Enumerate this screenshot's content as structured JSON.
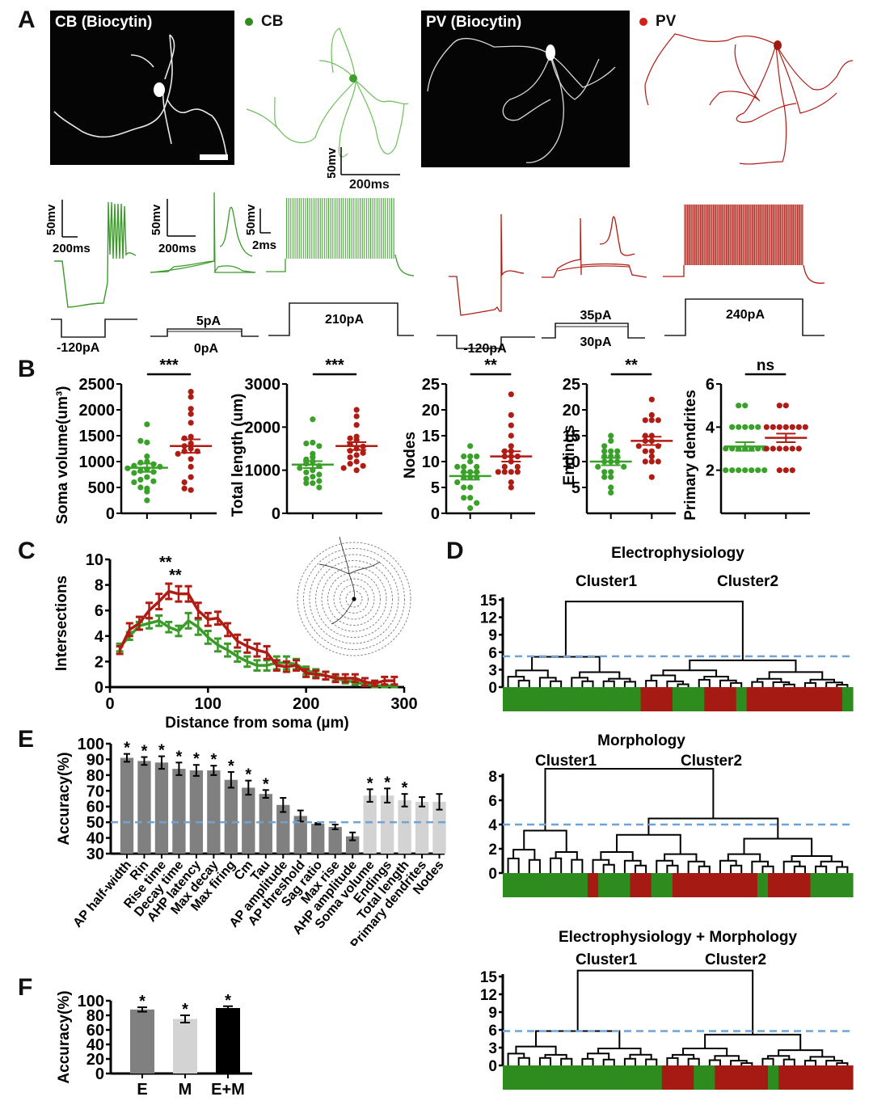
{
  "colors": {
    "cb": "#2e8b1e",
    "cb_light": "#5cc04a",
    "pv": "#b01c14",
    "pv_dark": "#a01810",
    "threshold": "#6fa3d8",
    "bar_e": "#808080",
    "bar_m": "#d3d3d3",
    "bar_em": "#000000",
    "axis": "#000000"
  },
  "panel_a": {
    "letter": "A",
    "cb_image_label": "CB (Biocytin)",
    "cb_legend": "CB",
    "pv_image_label": "PV (Biocytin)",
    "pv_legend": "PV",
    "morph_scale": {
      "v": "50mv",
      "t": "200ms"
    },
    "traces": [
      {
        "group": "CB",
        "scale_v": "50mv",
        "scale_t": "200ms",
        "currents": [
          "-120pA"
        ]
      },
      {
        "group": "CB",
        "scale_v": "50mv",
        "scale_t": "200ms",
        "currents": [
          "5pA",
          "0pA"
        ]
      },
      {
        "group": "CB",
        "scale_v": "50mv",
        "scale_t": "2ms",
        "currents": [
          "210pA"
        ]
      },
      {
        "group": "PV",
        "currents": [
          "-120pA"
        ]
      },
      {
        "group": "PV",
        "currents": [
          "35pA",
          "30pA"
        ]
      },
      {
        "group": "PV",
        "currents": [
          "240pA"
        ]
      }
    ]
  },
  "chart_data": [
    {
      "id": "B1",
      "type": "scatter",
      "panel": "B",
      "ylabel": "Soma volume(um³)",
      "ylim": [
        0,
        2500
      ],
      "yticks": [
        0,
        500,
        1000,
        1500,
        2000,
        2500
      ],
      "significance": "***",
      "series": [
        {
          "name": "CB",
          "mean": 880,
          "sem": 80,
          "values": [
            1720,
            1370,
            1400,
            1100,
            1000,
            980,
            950,
            920,
            900,
            870,
            850,
            820,
            800,
            780,
            700,
            650,
            620,
            600,
            480,
            500,
            420,
            250
          ]
        },
        {
          "name": "PV",
          "mean": 1300,
          "sem": 130,
          "values": [
            2350,
            2250,
            2020,
            1920,
            1750,
            1480,
            1450,
            1350,
            1300,
            1250,
            1200,
            1200,
            1150,
            1050,
            900,
            700,
            600,
            450,
            480
          ]
        }
      ]
    },
    {
      "id": "B2",
      "type": "scatter",
      "panel": "B",
      "ylabel": "Total length (um)",
      "ylim": [
        0,
        3000
      ],
      "yticks": [
        0,
        1000,
        2000,
        3000
      ],
      "significance": "***",
      "series": [
        {
          "name": "CB",
          "mean": 1130,
          "sem": 80,
          "values": [
            2180,
            1640,
            1620,
            1560,
            1380,
            1300,
            1250,
            1200,
            1150,
            1100,
            1050,
            1000,
            950,
            900,
            850,
            800,
            750,
            700,
            700,
            600
          ]
        },
        {
          "name": "PV",
          "mean": 1560,
          "sem": 90,
          "values": [
            2400,
            2250,
            2050,
            1780,
            1740,
            1700,
            1600,
            1550,
            1500,
            1450,
            1400,
            1350,
            1300,
            1200,
            1150,
            1100,
            1050,
            1000
          ]
        }
      ]
    },
    {
      "id": "B3",
      "type": "scatter",
      "panel": "B",
      "ylabel": "Nodes",
      "ylim": [
        0,
        25
      ],
      "yticks": [
        0,
        5,
        10,
        15,
        20,
        25
      ],
      "significance": "**",
      "series": [
        {
          "name": "CB",
          "mean": 7.2,
          "sem": 0.7,
          "values": [
            13,
            11,
            11,
            11,
            10,
            9,
            9,
            9,
            8,
            8,
            8,
            7,
            7,
            7,
            6,
            5,
            5,
            3,
            3,
            2,
            1
          ]
        },
        {
          "name": "PV",
          "mean": 11,
          "sem": 1,
          "values": [
            23,
            19,
            17,
            15,
            13,
            12,
            12,
            11,
            11,
            11,
            10,
            9,
            9,
            8,
            8,
            8,
            8,
            6,
            5
          ]
        }
      ]
    },
    {
      "id": "B4",
      "type": "scatter",
      "panel": "B",
      "ylabel": "Endings",
      "ylim": [
        0,
        25
      ],
      "yticks": [
        5,
        10,
        15,
        20,
        25
      ],
      "significance": "**",
      "series": [
        {
          "name": "CB",
          "mean": 10,
          "sem": 0.7,
          "values": [
            15,
            14,
            13,
            12,
            12,
            12,
            11,
            11,
            11,
            10,
            10,
            10,
            9,
            9,
            8,
            8,
            7,
            7,
            5,
            4
          ]
        },
        {
          "name": "PV",
          "mean": 14,
          "sem": 0.8,
          "values": [
            22,
            19,
            18,
            18,
            18,
            15,
            15,
            14,
            14,
            13,
            13,
            12,
            12,
            11,
            10,
            10,
            10,
            7
          ]
        }
      ]
    },
    {
      "id": "B5",
      "type": "scatter",
      "panel": "B",
      "ylabel": "Primary dendrites",
      "ylim": [
        0,
        6
      ],
      "yticks": [
        2,
        4,
        6
      ],
      "significance": "ns",
      "series": [
        {
          "name": "CB",
          "mean": 3.1,
          "sem": 0.2,
          "values": [
            5,
            5,
            4,
            4,
            4,
            4,
            4,
            3,
            3,
            3,
            3,
            3,
            3,
            3,
            2,
            2,
            2,
            2,
            2,
            2,
            2
          ]
        },
        {
          "name": "PV",
          "mean": 3.5,
          "sem": 0.2,
          "values": [
            5,
            5,
            4,
            4,
            4,
            4,
            4,
            4,
            4,
            3,
            3,
            3,
            3,
            3,
            3,
            2,
            2,
            2
          ]
        }
      ]
    },
    {
      "id": "C",
      "type": "line",
      "panel": "C",
      "xlabel": "Distance from soma (µm)",
      "ylabel": "Intersections",
      "xlim": [
        0,
        300
      ],
      "ylim": [
        0,
        10
      ],
      "xticks": [
        0,
        100,
        200,
        300
      ],
      "yticks": [
        0,
        2,
        4,
        6,
        8,
        10
      ],
      "x": [
        10,
        20,
        30,
        40,
        50,
        60,
        70,
        80,
        90,
        100,
        110,
        120,
        130,
        140,
        150,
        160,
        170,
        180,
        190,
        200,
        210,
        220,
        230,
        240,
        250,
        260,
        270,
        280,
        290
      ],
      "annotations": [
        {
          "x": 60,
          "text": "**"
        },
        {
          "x": 70,
          "text": "**"
        }
      ],
      "series": [
        {
          "name": "CB",
          "values": [
            3.1,
            4.0,
            4.8,
            5.0,
            5.2,
            4.7,
            4.4,
            5.2,
            4.7,
            3.9,
            3.3,
            2.9,
            2.4,
            2.0,
            1.7,
            1.7,
            1.9,
            1.9,
            1.8,
            1.3,
            1.1,
            0.9,
            0.7,
            0.5,
            0.4,
            0.2,
            0.1,
            0.1,
            0.1
          ],
          "err": [
            0.3,
            0.3,
            0.3,
            0.4,
            0.4,
            0.4,
            0.4,
            0.6,
            0.6,
            0.5,
            0.5,
            0.5,
            0.4,
            0.4,
            0.4,
            0.4,
            0.5,
            0.5,
            0.4,
            0.3,
            0.3,
            0.3,
            0.2,
            0.2,
            0.2,
            0.1,
            0.1,
            0.1,
            0.1
          ]
        },
        {
          "name": "PV",
          "values": [
            2.9,
            4.5,
            5.0,
            6.0,
            6.7,
            7.5,
            7.3,
            7.3,
            6.0,
            5.3,
            5.4,
            4.5,
            3.6,
            3.2,
            2.9,
            2.7,
            1.7,
            1.6,
            1.7,
            1.1,
            1.0,
            0.9,
            0.7,
            0.7,
            0.7,
            0.4,
            0.3,
            0.5,
            0.5
          ],
          "err": [
            0.3,
            0.5,
            0.5,
            0.6,
            0.6,
            0.6,
            0.6,
            0.6,
            0.6,
            0.5,
            0.5,
            0.5,
            0.5,
            0.5,
            0.5,
            0.5,
            0.4,
            0.4,
            0.4,
            0.3,
            0.3,
            0.3,
            0.3,
            0.3,
            0.3,
            0.3,
            0.2,
            0.3,
            0.3
          ]
        }
      ]
    },
    {
      "id": "D1",
      "type": "dendrogram",
      "panel": "D",
      "title": "Electrophysiology",
      "cluster_labels": [
        "Cluster1",
        "Cluster2"
      ],
      "ylim": [
        0,
        15
      ],
      "yticks": [
        0,
        3,
        6,
        9,
        12,
        15
      ],
      "threshold": 5.3,
      "root_height": 14.7,
      "sub_heights": [
        5.2,
        4.6
      ],
      "color_strip": [
        "G",
        "G",
        "G",
        "G",
        "G",
        "G",
        "G",
        "G",
        "G",
        "G",
        "G",
        "G",
        "G",
        "R",
        "R",
        "R",
        "G",
        "G",
        "G",
        "R",
        "R",
        "R",
        "G",
        "R",
        "R",
        "R",
        "R",
        "R",
        "R",
        "R",
        "R",
        "R",
        "G"
      ]
    },
    {
      "id": "D2",
      "type": "dendrogram",
      "panel": "D",
      "title": "Morphology",
      "cluster_labels": [
        "Cluster1",
        "Cluster2"
      ],
      "ylim": [
        0,
        8
      ],
      "yticks": [
        0,
        2,
        4,
        6,
        8
      ],
      "threshold": 4.0,
      "root_height": 8.6,
      "sub_heights": [
        3.5,
        4.5
      ],
      "color_strip": [
        "G",
        "G",
        "G",
        "G",
        "G",
        "G",
        "G",
        "G",
        "R",
        "G",
        "G",
        "G",
        "R",
        "R",
        "G",
        "G",
        "R",
        "R",
        "R",
        "R",
        "R",
        "R",
        "R",
        "R",
        "G",
        "R",
        "R",
        "R",
        "R",
        "G",
        "G",
        "G",
        "G"
      ]
    },
    {
      "id": "D3",
      "type": "dendrogram",
      "panel": "D",
      "title": "Electrophysiology + Morphology",
      "cluster_labels": [
        "Cluster1",
        "Cluster2"
      ],
      "ylim": [
        0,
        15
      ],
      "yticks": [
        0,
        3,
        6,
        9,
        12,
        15
      ],
      "threshold": 5.8,
      "root_height": 16,
      "sub_heights": [
        5.8,
        5.2
      ],
      "color_strip": [
        "G",
        "G",
        "G",
        "G",
        "G",
        "G",
        "G",
        "G",
        "G",
        "G",
        "G",
        "G",
        "G",
        "G",
        "G",
        "R",
        "R",
        "R",
        "G",
        "G",
        "R",
        "R",
        "R",
        "R",
        "R",
        "G",
        "R",
        "R",
        "R",
        "R",
        "R",
        "R",
        "R"
      ]
    },
    {
      "id": "E",
      "type": "bar",
      "panel": "E",
      "ylabel": "Accuracy(%)",
      "ylim": [
        30,
        100
      ],
      "yticks": [
        30,
        40,
        50,
        60,
        70,
        80,
        90,
        100
      ],
      "threshold": 50,
      "categories": [
        "AP half-width",
        "Rin",
        "Rise time",
        "Decay time",
        "AHP latency",
        "Max decay",
        "Max firing",
        "Cm",
        "Tau",
        "AP amplitude",
        "AP threshold",
        "Sag ratio",
        "Max rise",
        "AHP amplitude",
        "Soma volume",
        "Endings",
        "Total length",
        "Primary dendrites",
        "Nodes"
      ],
      "groups": [
        "E",
        "E",
        "E",
        "E",
        "E",
        "E",
        "E",
        "E",
        "E",
        "E",
        "E",
        "E",
        "E",
        "E",
        "M",
        "M",
        "M",
        "M",
        "M"
      ],
      "values": [
        91,
        89,
        88,
        84,
        83,
        83,
        77,
        72,
        68,
        61,
        54,
        49,
        47,
        41,
        67,
        67,
        64,
        63,
        63
      ],
      "errors": [
        2.5,
        2.5,
        4,
        4,
        3.5,
        3,
        5,
        4.5,
        2.5,
        4.5,
        3.5,
        0.5,
        1.5,
        2.5,
        4,
        4.5,
        4,
        3,
        5
      ],
      "significant": [
        true,
        true,
        true,
        true,
        true,
        true,
        true,
        true,
        true,
        false,
        false,
        false,
        false,
        false,
        true,
        true,
        true,
        false,
        false
      ]
    },
    {
      "id": "F",
      "type": "bar",
      "panel": "F",
      "ylabel": "Accuracy(%)",
      "ylim": [
        0,
        100
      ],
      "yticks": [
        0,
        20,
        40,
        60,
        80,
        100
      ],
      "categories": [
        "E",
        "M",
        "E+M"
      ],
      "values": [
        88,
        75,
        90
      ],
      "errors": [
        3,
        5,
        2.5
      ],
      "significant": [
        true,
        true,
        true
      ]
    }
  ],
  "panel_letters": {
    "b": "B",
    "c": "C",
    "d": "D",
    "e": "E",
    "f": "F"
  }
}
